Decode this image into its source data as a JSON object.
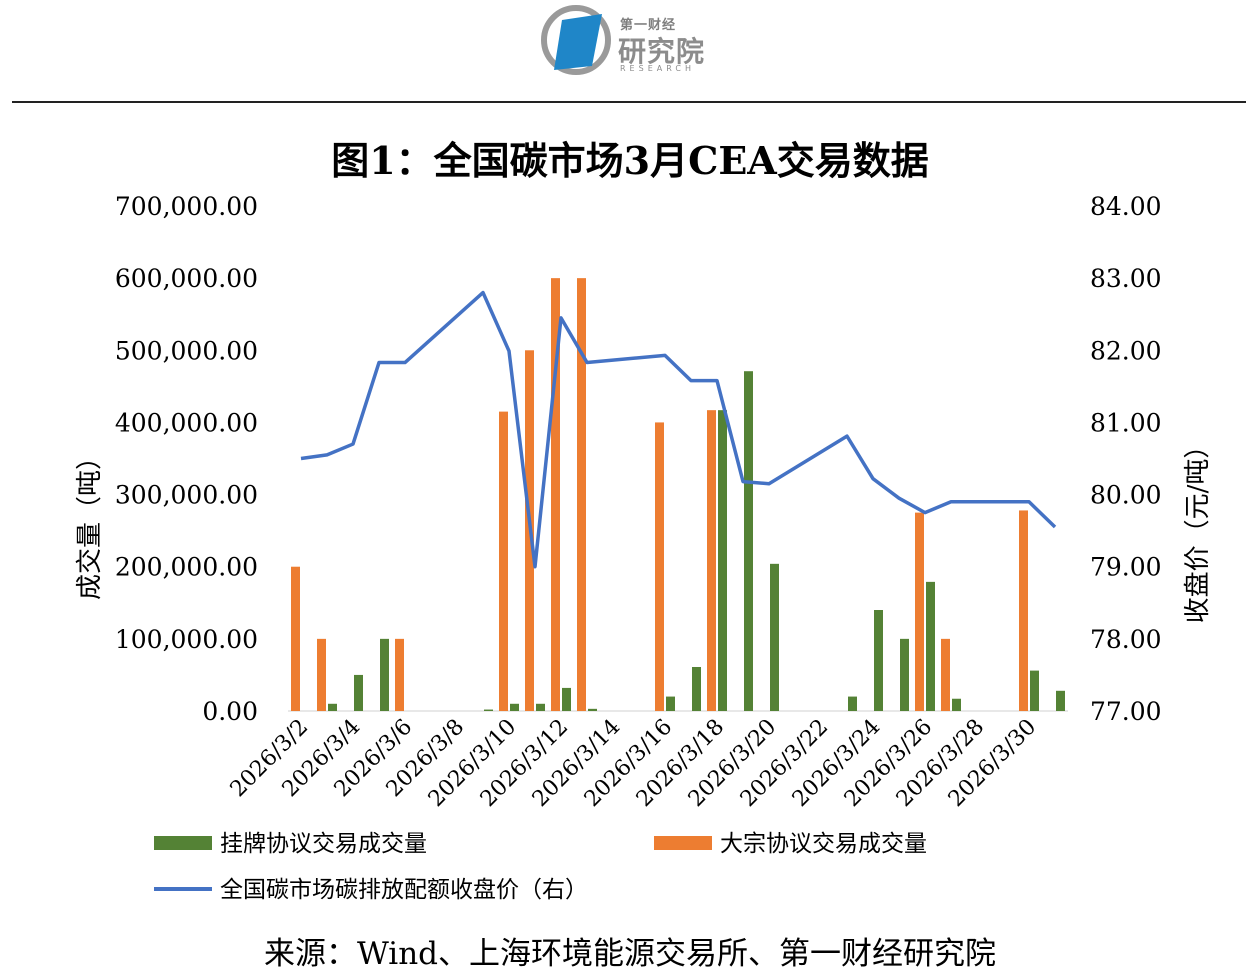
{
  "logo": {
    "top": "第一财经",
    "main": "研究院",
    "sub": "RESEARCH"
  },
  "chart_data": {
    "type": "bar",
    "title": "图1：全国碳市场3月CEA交易数据",
    "source": "来源：Wind、上海环境能源交易所、第一财经研究院",
    "ylabel_left": "成交量（吨）",
    "ylabel_right": "收盘价（元/吨）",
    "ylim_left": [
      0,
      700000
    ],
    "ylim_right": [
      77,
      84
    ],
    "yticks_left": [
      "0.00",
      "100,000.00",
      "200,000.00",
      "300,000.00",
      "400,000.00",
      "500,000.00",
      "600,000.00",
      "700,000.00"
    ],
    "yticks_right": [
      "77.00",
      "78.00",
      "79.00",
      "80.00",
      "81.00",
      "82.00",
      "83.00",
      "84.00"
    ],
    "x_ticks": [
      "2026/3/2",
      "2026/3/4",
      "2026/3/6",
      "2026/3/8",
      "2026/3/10",
      "2026/3/12",
      "2026/3/14",
      "2026/3/16",
      "2026/3/18",
      "2026/3/20",
      "2026/3/22",
      "2026/3/24",
      "2026/3/26",
      "2026/3/28",
      "2026/3/30"
    ],
    "x": [
      "2026/3/2",
      "2026/3/3",
      "2026/3/4",
      "2026/3/5",
      "2026/3/6",
      "2026/3/7",
      "2026/3/8",
      "2026/3/9",
      "2026/3/10",
      "2026/3/11",
      "2026/3/12",
      "2026/3/13",
      "2026/3/14",
      "2026/3/15",
      "2026/3/16",
      "2026/3/17",
      "2026/3/18",
      "2026/3/19",
      "2026/3/20",
      "2026/3/21",
      "2026/3/22",
      "2026/3/23",
      "2026/3/24",
      "2026/3/25",
      "2026/3/26",
      "2026/3/27",
      "2026/3/28",
      "2026/3/29",
      "2026/3/30",
      "2026/3/31"
    ],
    "trading_days": [
      "2026/3/2",
      "2026/3/3",
      "2026/3/4",
      "2026/3/5",
      "2026/3/6",
      "2026/3/9",
      "2026/3/10",
      "2026/3/11",
      "2026/3/12",
      "2026/3/13",
      "2026/3/16",
      "2026/3/17",
      "2026/3/18",
      "2026/3/19",
      "2026/3/20",
      "2026/3/23",
      "2026/3/24",
      "2026/3/25",
      "2026/3/26",
      "2026/3/27",
      "2026/3/30",
      "2026/3/31"
    ],
    "series": [
      {
        "name": "挂牌协议交易成交量",
        "color": "#548235",
        "kind": "bar",
        "axis": "left",
        "values": [
          0,
          10000,
          50000,
          100000,
          0,
          null,
          null,
          2000,
          10000,
          10000,
          32000,
          3000,
          null,
          null,
          20000,
          61000,
          417000,
          471000,
          204000,
          null,
          null,
          20000,
          140000,
          100000,
          179000,
          17000,
          null,
          null,
          56000,
          28000
        ]
      },
      {
        "name": "大宗协议交易成交量",
        "color": "#ed7d31",
        "kind": "bar",
        "axis": "left",
        "values": [
          200000,
          100000,
          0,
          0,
          100000,
          null,
          null,
          0,
          415000,
          500000,
          600000,
          600000,
          null,
          null,
          400000,
          0,
          417000,
          0,
          0,
          null,
          null,
          0,
          0,
          0,
          275000,
          100000,
          null,
          null,
          278000,
          0
        ]
      },
      {
        "name": "全国碳市场碳排放配额收盘价（右）",
        "color": "#4472c4",
        "kind": "line",
        "axis": "right",
        "values": [
          80.5,
          80.55,
          80.7,
          81.83,
          81.83,
          null,
          null,
          82.8,
          81.99,
          79.0,
          82.45,
          81.83,
          null,
          null,
          81.93,
          81.58,
          81.58,
          80.18,
          80.15,
          null,
          null,
          80.81,
          80.22,
          79.95,
          79.75,
          79.9,
          null,
          null,
          79.9,
          79.55
        ]
      }
    ],
    "grid": false,
    "legend_position": "bottom"
  }
}
